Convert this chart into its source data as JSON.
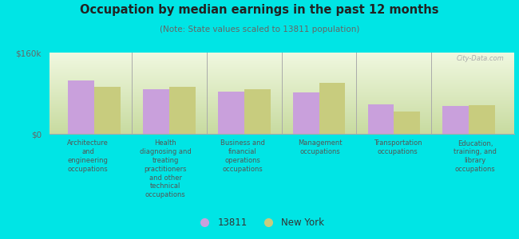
{
  "title": "Occupation by median earnings in the past 12 months",
  "subtitle": "(Note: State values scaled to 13811 population)",
  "categories": [
    "Architecture\nand\nengineering\noccupations",
    "Health\ndiagnosing and\ntreating\npractitioners\nand other\ntechnical\noccupations",
    "Business and\nfinancial\noperations\noccupations",
    "Management\noccupations",
    "Transportation\noccupations",
    "Education,\ntraining, and\nlibrary\noccupations"
  ],
  "values_13811": [
    105000,
    88000,
    83000,
    82000,
    58000,
    55000
  ],
  "values_ny": [
    93000,
    92000,
    88000,
    100000,
    44000,
    57000
  ],
  "ylim": [
    0,
    160000
  ],
  "yticks": [
    0,
    160000
  ],
  "ytick_labels": [
    "$0",
    "$160k"
  ],
  "color_13811": "#c9a0dc",
  "color_ny": "#c8cc7e",
  "background_outer": "#00e5e5",
  "background_plot_top": "#f5fae8",
  "background_plot_bottom": "#d8edb0",
  "legend_13811": "13811",
  "legend_ny": "New York",
  "watermark": "City-Data.com"
}
